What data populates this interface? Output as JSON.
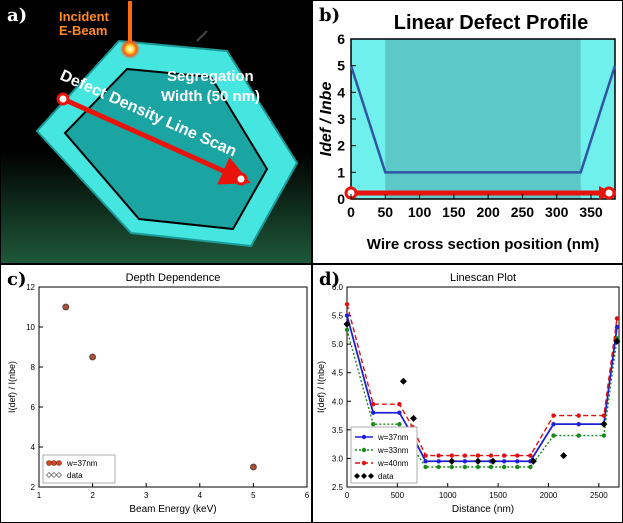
{
  "panels": {
    "a": {
      "label": "a)",
      "incident": "Incident",
      "ebeam": "E-Beam",
      "segregation": "Segregation",
      "width": "Width (50 nm)",
      "linescan": "Defect Density Line Scan"
    },
    "b": {
      "label": "b)"
    },
    "c": {
      "label": "c)"
    },
    "d": {
      "label": "d)"
    }
  },
  "chart_data": [
    {
      "id": "b",
      "type": "line",
      "title": "Linear Defect Profile",
      "xlabel": "Wire cross section position (nm)",
      "ylabel": "Idef / Inbe",
      "xlim": [
        0,
        385
      ],
      "ylim": [
        0,
        6
      ],
      "xticks": [
        0,
        50,
        100,
        150,
        200,
        250,
        300,
        350
      ],
      "yticks": [
        0,
        1,
        2,
        3,
        4,
        5,
        6
      ],
      "series": [
        {
          "x": [
            0,
            50,
            335,
            385
          ],
          "y": [
            5,
            1,
            1,
            5
          ]
        }
      ],
      "shaded_bands": [
        [
          0,
          50
        ],
        [
          335,
          385
        ]
      ],
      "colors": {
        "background": "#5cc8c8",
        "band": "#6ff0ec",
        "line": "#2f55a3",
        "arrow": "#e8140c"
      }
    },
    {
      "id": "c",
      "type": "scatter",
      "title": "Depth Dependence",
      "xlabel": "Beam Energy (keV)",
      "ylabel": "I(def) / I(nbe)",
      "xlim": [
        1,
        6
      ],
      "ylim": [
        2,
        12
      ],
      "xticks": [
        1,
        2,
        3,
        4,
        5,
        6
      ],
      "yticks": [
        2,
        4,
        6,
        8,
        10,
        12
      ],
      "legend": "bottom-left",
      "series": [
        {
          "name": "w=37nm",
          "x": [
            1.5,
            2,
            5
          ],
          "y": [
            11.0,
            8.5,
            3.0
          ]
        },
        {
          "name": "data",
          "x": [
            1.5,
            2,
            5
          ],
          "y": [
            11.0,
            8.5,
            3.0
          ]
        }
      ]
    },
    {
      "id": "d",
      "type": "line",
      "title": "Linescan Plot",
      "xlabel": "Distance (nm)",
      "ylabel": "I(def) / I(nbe)",
      "xlim": [
        0,
        2700
      ],
      "ylim": [
        2.5,
        6.0
      ],
      "xticks": [
        0,
        500,
        1000,
        1500,
        2000,
        2500
      ],
      "yticks": [
        2.5,
        3.0,
        3.5,
        4.0,
        4.5,
        5.0,
        5.5,
        6.0
      ],
      "legend": "bottom-left",
      "x": [
        0,
        260,
        520,
        650,
        780,
        910,
        1040,
        1170,
        1300,
        1430,
        1560,
        1690,
        1820,
        2050,
        2300,
        2550,
        2680
      ],
      "series": [
        {
          "name": "w=37nm",
          "color": "#1f1fd6",
          "y": [
            5.5,
            3.8,
            3.8,
            3.4,
            2.95,
            2.95,
            2.95,
            2.95,
            2.95,
            2.95,
            2.95,
            2.95,
            2.95,
            3.6,
            3.6,
            3.6,
            5.3
          ]
        },
        {
          "name": "w=33nm",
          "color": "#1a8a1a",
          "y": [
            5.25,
            3.6,
            3.6,
            3.2,
            2.85,
            2.85,
            2.85,
            2.85,
            2.85,
            2.85,
            2.85,
            2.85,
            2.85,
            3.4,
            3.4,
            3.4,
            5.1
          ]
        },
        {
          "name": "w=40nm",
          "color": "#e01010",
          "y": [
            5.7,
            3.95,
            3.95,
            3.55,
            3.05,
            3.05,
            3.05,
            3.05,
            3.05,
            3.05,
            3.05,
            3.05,
            3.05,
            3.75,
            3.75,
            3.75,
            5.45
          ]
        },
        {
          "name": "data",
          "x": [
            0,
            560,
            660,
            1040,
            1300,
            1450,
            1850,
            2150,
            2550,
            2680
          ],
          "y": [
            5.35,
            4.35,
            3.7,
            2.95,
            2.95,
            2.95,
            2.95,
            3.05,
            3.6,
            5.05
          ]
        }
      ]
    }
  ]
}
